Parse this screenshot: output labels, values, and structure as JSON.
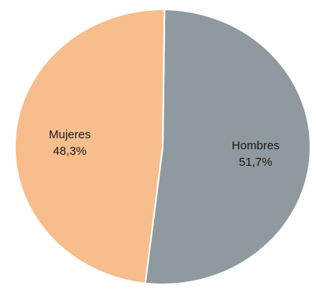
{
  "chart_data": {
    "type": "pie",
    "slices": [
      {
        "name": "Hombres",
        "value": 51.7,
        "value_label": "51,7%",
        "color": "#8e9a9f"
      },
      {
        "name": "Mujeres",
        "value": 48.3,
        "value_label": "48,3%",
        "color": "#f7bd8d"
      }
    ],
    "start": "12 o'clock",
    "direction": "clockwise",
    "slice_border_color": "#ffffff",
    "legend": "none"
  }
}
